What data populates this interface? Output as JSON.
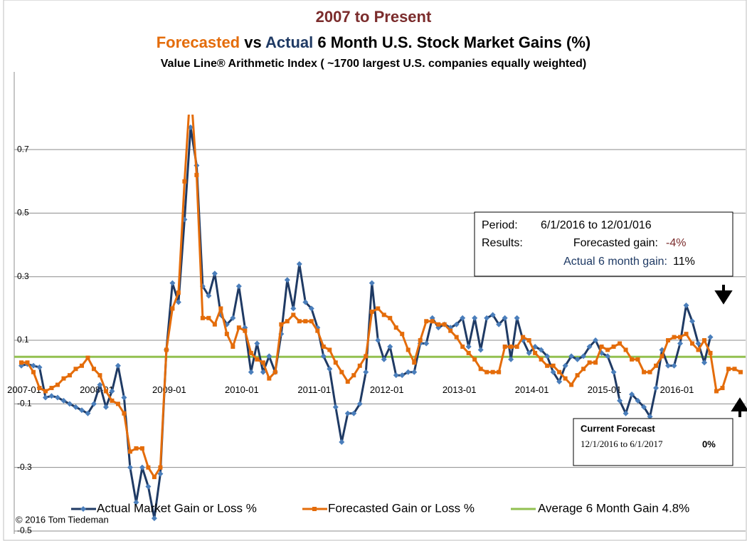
{
  "chart_data": {
    "type": "line",
    "title": "2007 to Present",
    "title_color": "#7b2c2c",
    "subtitle_parts": [
      {
        "text": "Forecasted",
        "color": "#e46c0a"
      },
      {
        "text": "vs",
        "color": "#000000"
      },
      {
        "text": "Actual",
        "color": "#1f3a64"
      },
      {
        "text": "6 Month U.S. Stock Market Gains (%)",
        "color": "#000000"
      }
    ],
    "subtitle2": "Value Line® Arithmetic Index ( ~1700 largest U.S. companies equally weighted)",
    "categories": [
      "2007-01",
      null,
      null,
      null,
      null,
      null,
      null,
      null,
      null,
      null,
      null,
      null,
      "2008-01",
      null,
      null,
      null,
      null,
      null,
      null,
      null,
      null,
      null,
      null,
      null,
      "2009-01",
      null,
      null,
      null,
      null,
      null,
      null,
      null,
      null,
      null,
      null,
      null,
      "2010-01",
      null,
      null,
      null,
      null,
      null,
      null,
      null,
      null,
      null,
      null,
      null,
      "2011-01",
      null,
      null,
      null,
      null,
      null,
      null,
      null,
      null,
      null,
      null,
      null,
      "2012-01",
      null,
      null,
      null,
      null,
      null,
      null,
      null,
      null,
      null,
      null,
      null,
      "2013-01",
      null,
      null,
      null,
      null,
      null,
      null,
      null,
      null,
      null,
      null,
      null,
      "2014-01",
      null,
      null,
      null,
      null,
      null,
      null,
      null,
      null,
      null,
      null,
      null,
      "2015-01",
      null,
      null,
      null,
      null,
      null,
      null,
      null,
      null,
      null,
      null,
      null,
      "2016-01",
      null,
      null,
      null,
      null,
      null,
      null,
      null,
      null,
      null,
      null,
      null
    ],
    "series": [
      {
        "name": "Actual Market Gain or Loss %",
        "color": "#1f3a64",
        "marker_color": "#4a7ebb",
        "marker": "diamond",
        "values": [
          0.02,
          0.025,
          0.02,
          0.015,
          -0.08,
          -0.075,
          -0.08,
          -0.09,
          -0.1,
          -0.11,
          -0.12,
          -0.13,
          -0.1,
          -0.04,
          -0.11,
          -0.06,
          0.02,
          -0.08,
          -0.3,
          -0.41,
          -0.3,
          -0.36,
          -0.46,
          -0.32,
          0.07,
          0.28,
          0.22,
          0.48,
          0.77,
          0.65,
          0.27,
          0.24,
          0.31,
          0.18,
          0.15,
          0.17,
          0.27,
          0.14,
          0.0,
          0.09,
          0.0,
          0.05,
          0.0,
          0.12,
          0.29,
          0.2,
          0.34,
          0.22,
          0.2,
          0.14,
          0.05,
          0.01,
          -0.11,
          -0.22,
          -0.13,
          -0.13,
          -0.1,
          0.0,
          0.28,
          0.1,
          0.04,
          0.08,
          -0.01,
          -0.01,
          0.0,
          0.0,
          0.09,
          0.09,
          0.17,
          0.14,
          0.15,
          0.14,
          0.15,
          0.17,
          0.08,
          0.17,
          0.07,
          0.17,
          0.18,
          0.15,
          0.17,
          0.04,
          0.17,
          0.1,
          0.06,
          0.08,
          0.07,
          0.05,
          0.0,
          -0.03,
          0.02,
          0.05,
          0.04,
          0.05,
          0.08,
          0.1,
          0.06,
          0.05,
          0.0,
          -0.09,
          -0.13,
          -0.07,
          -0.09,
          -0.11,
          -0.14,
          -0.05,
          0.07,
          0.02,
          0.02,
          0.09,
          0.21,
          0.16,
          0.09,
          0.03,
          0.11,
          null,
          null,
          null,
          null,
          null
        ]
      },
      {
        "name": "Forecasted Gain or Loss %",
        "color": "#e46c0a",
        "marker_color": "#e46c0a",
        "marker": "square",
        "values": [
          0.03,
          0.03,
          0.0,
          -0.05,
          -0.06,
          -0.05,
          -0.04,
          -0.02,
          -0.01,
          0.01,
          0.02,
          0.045,
          0.01,
          -0.01,
          -0.06,
          -0.09,
          -0.1,
          -0.13,
          -0.25,
          -0.24,
          -0.24,
          -0.3,
          -0.33,
          -0.3,
          0.07,
          0.2,
          0.25,
          0.6,
          0.9,
          0.62,
          0.17,
          0.17,
          0.15,
          0.2,
          0.12,
          0.08,
          0.14,
          0.13,
          0.06,
          0.04,
          0.03,
          -0.02,
          0.0,
          0.15,
          0.16,
          0.18,
          0.16,
          0.16,
          0.16,
          0.13,
          0.08,
          0.07,
          0.03,
          0.0,
          -0.03,
          -0.01,
          0.02,
          0.05,
          0.19,
          0.2,
          0.18,
          0.17,
          0.14,
          0.12,
          0.07,
          0.03,
          0.1,
          0.16,
          0.16,
          0.15,
          0.15,
          0.13,
          0.11,
          0.08,
          0.06,
          0.04,
          0.01,
          0.0,
          0.0,
          0.0,
          0.08,
          0.08,
          0.08,
          0.11,
          0.1,
          0.06,
          0.04,
          0.02,
          0.02,
          0.0,
          -0.02,
          -0.04,
          -0.01,
          0.01,
          0.03,
          0.03,
          0.08,
          0.07,
          0.08,
          0.09,
          0.07,
          0.04,
          0.04,
          0.0,
          0.0,
          0.02,
          0.05,
          0.1,
          0.11,
          0.11,
          0.12,
          0.09,
          0.07,
          0.1,
          0.06,
          -0.06,
          -0.05,
          0.01,
          0.01,
          0.0
        ]
      }
    ],
    "reference_lines": [
      {
        "name": "Average 6 Month Gain 4.8%",
        "color": "#92c050",
        "value": 0.048
      }
    ],
    "ylim": [
      -0.5,
      0.81
    ],
    "yticks": [
      0.7,
      0.5,
      0.3,
      0.1,
      -0.1,
      -0.3,
      -0.5
    ],
    "grid": true,
    "legend_position": "bottom",
    "annotation_period": {
      "period_label": "Period:",
      "period": "6/1/2016 to 12/01/016",
      "results_label": "Results:",
      "forecast_label": "Forecasted gain:",
      "forecast_value": "-4%",
      "actual_label": "Actual 6 month gain:",
      "actual_value": "11%"
    },
    "annotation_current": {
      "title": "Current Forecast",
      "period": "12/1/2016 to 6/1/2017",
      "value": "0%"
    },
    "copyright": "© 2016 Tom Tiedeman"
  }
}
